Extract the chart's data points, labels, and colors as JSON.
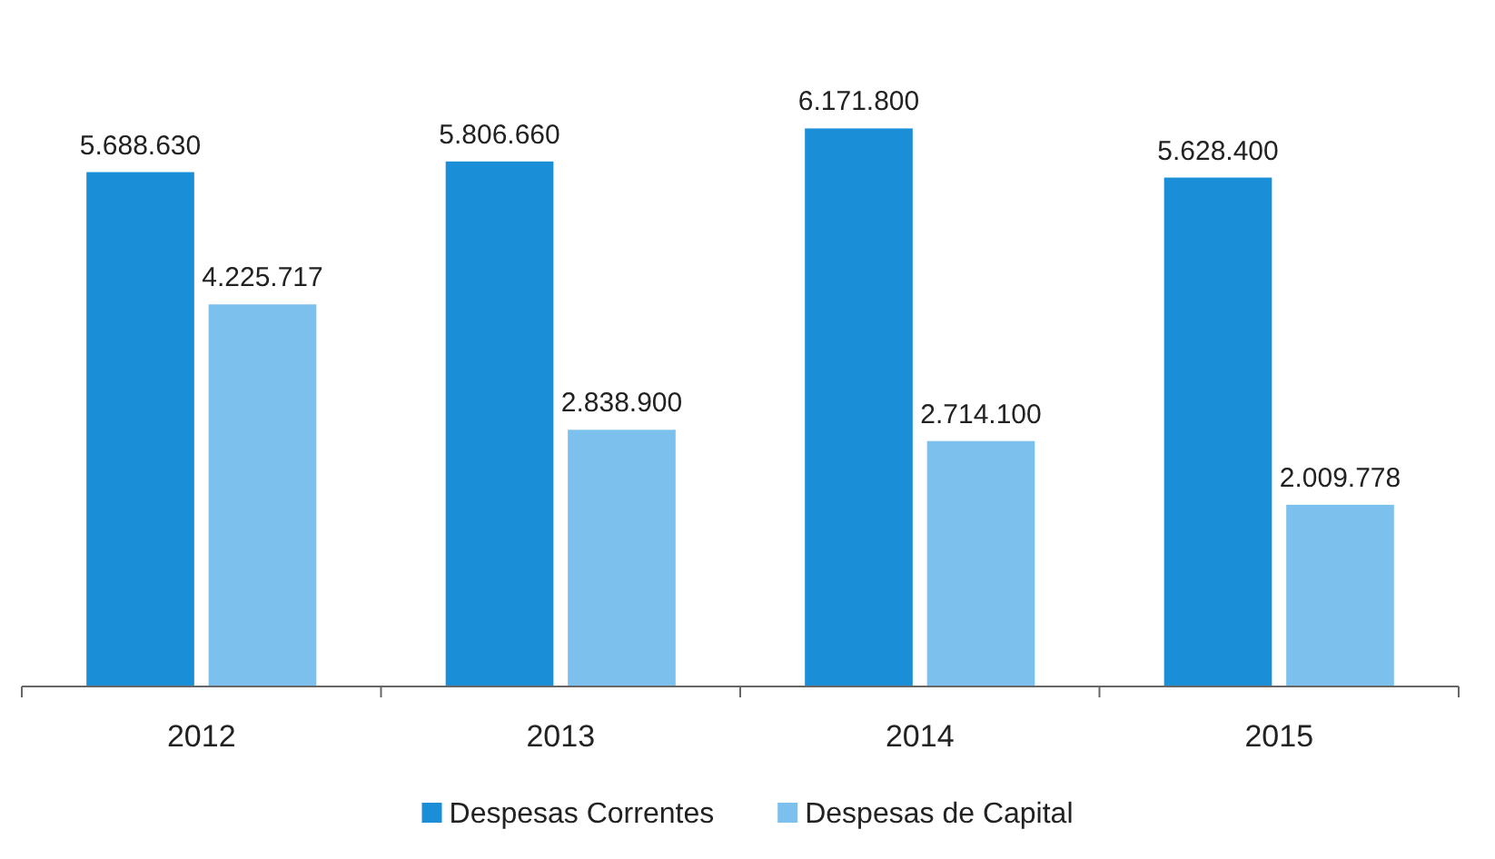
{
  "chart_data": {
    "type": "bar",
    "categories": [
      "2012",
      "2013",
      "2014",
      "2015"
    ],
    "series": [
      {
        "name": "Despesas Correntes",
        "color": "#1a8fd8",
        "values": [
          5688630,
          5806660,
          6171800,
          5628400
        ],
        "value_labels": [
          "5.688.630",
          "5.806.660",
          "6.171.800",
          "5.628.400"
        ]
      },
      {
        "name": "Despesas de Capital",
        "color": "#7cc0ee",
        "values": [
          4225717,
          2838900,
          2714100,
          2009778
        ],
        "value_labels": [
          "4.225.717",
          "2.838.900",
          "2.714.100",
          "2.009.778"
        ]
      }
    ],
    "legend": "bottom"
  }
}
